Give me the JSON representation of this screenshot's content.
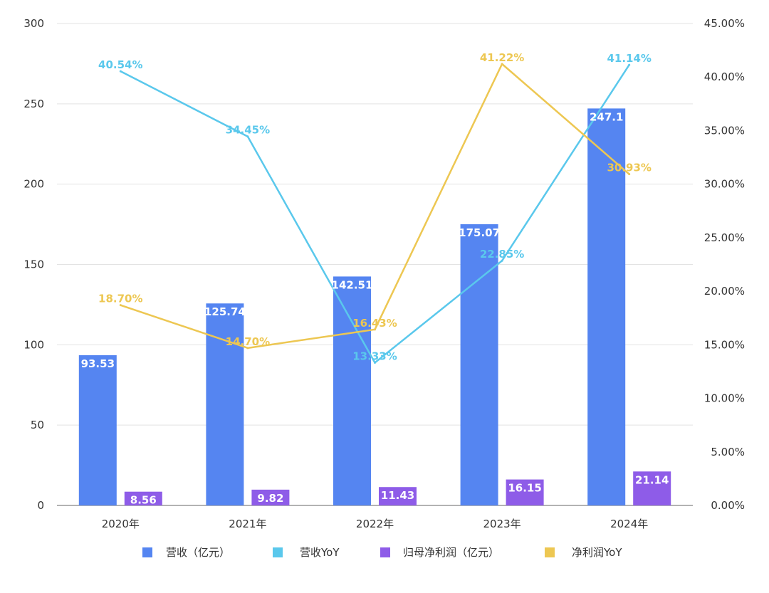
{
  "chart_data": {
    "type": "bar",
    "categories": [
      "2020年",
      "2021年",
      "2022年",
      "2023年",
      "2024年"
    ],
    "y_left": {
      "min": 0,
      "max": 300,
      "ticks": [
        0,
        50,
        100,
        150,
        200,
        250,
        300
      ]
    },
    "y_right": {
      "min": 0,
      "max": 45,
      "ticks": [
        0,
        5,
        10,
        15,
        20,
        25,
        30,
        35,
        40,
        45
      ],
      "tick_labels": [
        "0.00%",
        "5.00%",
        "10.00%",
        "15.00%",
        "20.00%",
        "25.00%",
        "30.00%",
        "35.00%",
        "40.00%",
        "45.00%"
      ]
    },
    "grid": true,
    "legend_position": "bottom",
    "series": [
      {
        "name": "营收（亿元）",
        "kind": "bar",
        "axis": "left",
        "color": "#5585F1",
        "values": [
          93.53,
          125.74,
          142.51,
          175.07,
          247.1
        ],
        "labels": [
          "93.53",
          "125.74",
          "142.51",
          "175.07",
          "247.1"
        ]
      },
      {
        "name": "营收YoY",
        "kind": "line",
        "axis": "right",
        "color": "#5AC8EC",
        "values": [
          40.54,
          34.45,
          13.33,
          22.85,
          41.14
        ],
        "labels": [
          "40.54%",
          "34.45%",
          "13.33%",
          "22.85%",
          "41.14%"
        ]
      },
      {
        "name": "归母净利润（亿元）",
        "kind": "bar",
        "axis": "left",
        "color": "#8E5CE8",
        "values": [
          8.56,
          9.82,
          11.43,
          16.15,
          21.14
        ],
        "labels": [
          "8.56",
          "9.82",
          "11.43",
          "16.15",
          "21.14"
        ]
      },
      {
        "name": "净利润YoY",
        "kind": "line",
        "axis": "right",
        "color": "#EDC752",
        "values": [
          18.7,
          14.7,
          16.43,
          41.22,
          30.93
        ],
        "labels": [
          "18.70%",
          "14.70%",
          "16.43%",
          "41.22%",
          "30.93%"
        ]
      }
    ]
  }
}
